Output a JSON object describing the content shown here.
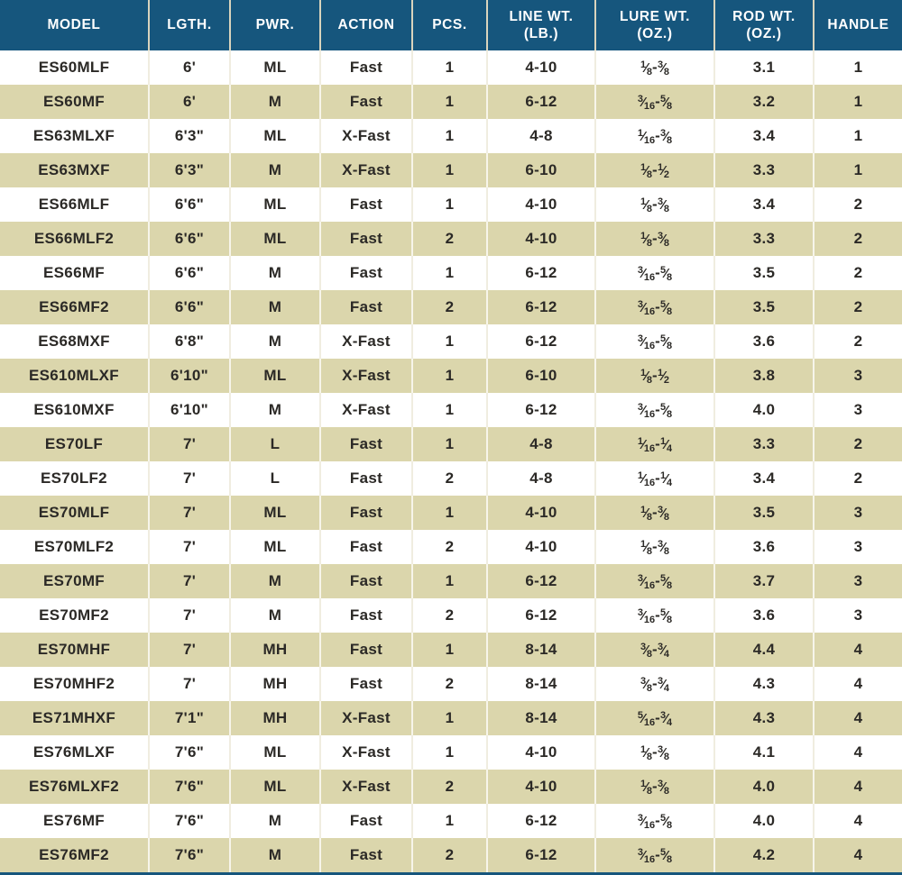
{
  "colors": {
    "header_bg": "#16567d",
    "header_text": "#ffffff",
    "row_alt_bg": "#dbd6ac",
    "row_bg": "#ffffff",
    "text": "#2b2926"
  },
  "table": {
    "columns": [
      {
        "label": "MODEL",
        "sub": ""
      },
      {
        "label": "LGTH.",
        "sub": ""
      },
      {
        "label": "PWR.",
        "sub": ""
      },
      {
        "label": "ACTION",
        "sub": ""
      },
      {
        "label": "PCS.",
        "sub": ""
      },
      {
        "label": "LINE WT.",
        "sub": "(LB.)"
      },
      {
        "label": "LURE WT.",
        "sub": "(OZ.)"
      },
      {
        "label": "ROD WT.",
        "sub": "(OZ.)"
      },
      {
        "label": "HANDLE",
        "sub": ""
      }
    ],
    "rows": [
      [
        "ES60MLF",
        "6'",
        "ML",
        "Fast",
        "1",
        "4-10",
        "1/8-3/8",
        "3.1",
        "1"
      ],
      [
        "ES60MF",
        "6'",
        "M",
        "Fast",
        "1",
        "6-12",
        "3/16-5/8",
        "3.2",
        "1"
      ],
      [
        "ES63MLXF",
        "6'3\"",
        "ML",
        "X-Fast",
        "1",
        "4-8",
        "1/16-3/8",
        "3.4",
        "1"
      ],
      [
        "ES63MXF",
        "6'3\"",
        "M",
        "X-Fast",
        "1",
        "6-10",
        "1/8-1/2",
        "3.3",
        "1"
      ],
      [
        "ES66MLF",
        "6'6\"",
        "ML",
        "Fast",
        "1",
        "4-10",
        "1/8-3/8",
        "3.4",
        "2"
      ],
      [
        "ES66MLF2",
        "6'6\"",
        "ML",
        "Fast",
        "2",
        "4-10",
        "1/8-3/8",
        "3.3",
        "2"
      ],
      [
        "ES66MF",
        "6'6\"",
        "M",
        "Fast",
        "1",
        "6-12",
        "3/16-5/8",
        "3.5",
        "2"
      ],
      [
        "ES66MF2",
        "6'6\"",
        "M",
        "Fast",
        "2",
        "6-12",
        "3/16-5/8",
        "3.5",
        "2"
      ],
      [
        "ES68MXF",
        "6'8\"",
        "M",
        "X-Fast",
        "1",
        "6-12",
        "3/16-5/8",
        "3.6",
        "2"
      ],
      [
        "ES610MLXF",
        "6'10\"",
        "ML",
        "X-Fast",
        "1",
        "6-10",
        "1/8-1/2",
        "3.8",
        "3"
      ],
      [
        "ES610MXF",
        "6'10\"",
        "M",
        "X-Fast",
        "1",
        "6-12",
        "3/16-5/8",
        "4.0",
        "3"
      ],
      [
        "ES70LF",
        "7'",
        "L",
        "Fast",
        "1",
        "4-8",
        "1/16-1/4",
        "3.3",
        "2"
      ],
      [
        "ES70LF2",
        "7'",
        "L",
        "Fast",
        "2",
        "4-8",
        "1/16-1/4",
        "3.4",
        "2"
      ],
      [
        "ES70MLF",
        "7'",
        "ML",
        "Fast",
        "1",
        "4-10",
        "1/8-3/8",
        "3.5",
        "3"
      ],
      [
        "ES70MLF2",
        "7'",
        "ML",
        "Fast",
        "2",
        "4-10",
        "1/8-3/8",
        "3.6",
        "3"
      ],
      [
        "ES70MF",
        "7'",
        "M",
        "Fast",
        "1",
        "6-12",
        "3/16-5/8",
        "3.7",
        "3"
      ],
      [
        "ES70MF2",
        "7'",
        "M",
        "Fast",
        "2",
        "6-12",
        "3/16-5/8",
        "3.6",
        "3"
      ],
      [
        "ES70MHF",
        "7'",
        "MH",
        "Fast",
        "1",
        "8-14",
        "3/8-3/4",
        "4.4",
        "4"
      ],
      [
        "ES70MHF2",
        "7'",
        "MH",
        "Fast",
        "2",
        "8-14",
        "3/8-3/4",
        "4.3",
        "4"
      ],
      [
        "ES71MHXF",
        "7'1\"",
        "MH",
        "X-Fast",
        "1",
        "8-14",
        "5/16-3/4",
        "4.3",
        "4"
      ],
      [
        "ES76MLXF",
        "7'6\"",
        "ML",
        "X-Fast",
        "1",
        "4-10",
        "1/8-3/8",
        "4.1",
        "4"
      ],
      [
        "ES76MLXF2",
        "7'6\"",
        "ML",
        "X-Fast",
        "2",
        "4-10",
        "1/8-3/8",
        "4.0",
        "4"
      ],
      [
        "ES76MF",
        "7'6\"",
        "M",
        "Fast",
        "1",
        "6-12",
        "3/16-5/8",
        "4.0",
        "4"
      ],
      [
        "ES76MF2",
        "7'6\"",
        "M",
        "Fast",
        "2",
        "6-12",
        "3/16-5/8",
        "4.2",
        "4"
      ]
    ]
  }
}
